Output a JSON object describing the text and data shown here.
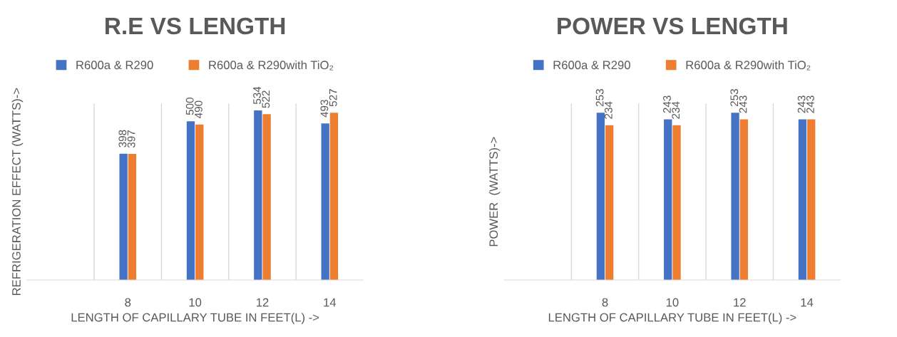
{
  "chart_data": [
    {
      "type": "bar",
      "title": "R.E VS LENGTH",
      "xlabel": "LENGTH OF CAPILLARY TUBE IN FEET(L) ->",
      "ylabel": "REFRIGERATION EFFECT (WATTS)->",
      "categories": [
        null,
        "8",
        "10",
        "12",
        "14"
      ],
      "series": [
        {
          "name": "R600a & R290",
          "color": "#4472c4",
          "values": [
            null,
            398,
            500,
            534,
            493
          ]
        },
        {
          "name": "R600a & R290with TiO₂",
          "color": "#ed7d31",
          "values": [
            null,
            397,
            490,
            522,
            527
          ]
        }
      ],
      "ylim": [
        0,
        556
      ],
      "tick_labels": "x",
      "data_labels": true,
      "grid": "x",
      "legend": "top"
    },
    {
      "type": "bar",
      "title": "POWER VS LENGTH",
      "xlabel": "LENGTH OF CAPILLARY TUBE IN FEET(L) ->",
      "ylabel": "POWER  (WATTS)->",
      "categories": [
        null,
        "8",
        "10",
        "12",
        "14"
      ],
      "series": [
        {
          "name": "R600a & R290",
          "color": "#4472c4",
          "values": [
            null,
            253,
            243,
            253,
            243
          ]
        },
        {
          "name": "R600a & R290with TiO₂",
          "color": "#ed7d31",
          "values": [
            null,
            234,
            234,
            243,
            243
          ]
        }
      ],
      "ylim": [
        0,
        267
      ],
      "tick_labels": "x",
      "data_labels": true,
      "grid": "x",
      "legend": "top"
    }
  ]
}
